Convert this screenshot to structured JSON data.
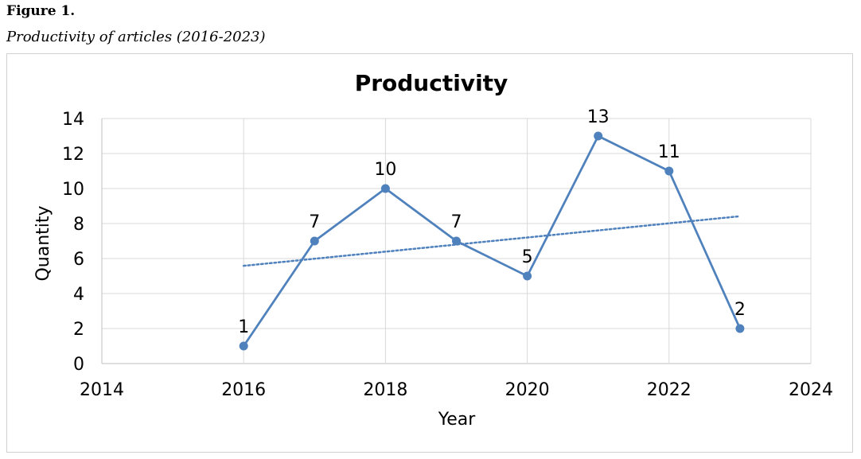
{
  "figure": {
    "label": "Figure 1.",
    "caption": "Productivity of articles (2016-2023)"
  },
  "chart_data": {
    "type": "scatter",
    "title": "Productivity",
    "xlabel": "Year",
    "ylabel": "Quantity",
    "xlim": [
      2014,
      2024
    ],
    "ylim": [
      0,
      14
    ],
    "x_ticks": [
      2014,
      2016,
      2018,
      2020,
      2022,
      2024
    ],
    "y_ticks": [
      0,
      2,
      4,
      6,
      8,
      10,
      12,
      14
    ],
    "grid": true,
    "legend": "none",
    "series": [
      {
        "x": [
          2016,
          2017,
          2018,
          2019,
          2020,
          2021,
          2022,
          2023
        ],
        "y": [
          1,
          7,
          10,
          7,
          5,
          13,
          11,
          2
        ],
        "data_labels": [
          "1",
          "7",
          "10",
          "7",
          "5",
          "13",
          "11",
          "2"
        ],
        "color": "#4F81BD",
        "markers": true,
        "connected": true
      }
    ],
    "trendline": {
      "type": "linear",
      "style": "dotted",
      "color": "#4F81BD"
    }
  }
}
